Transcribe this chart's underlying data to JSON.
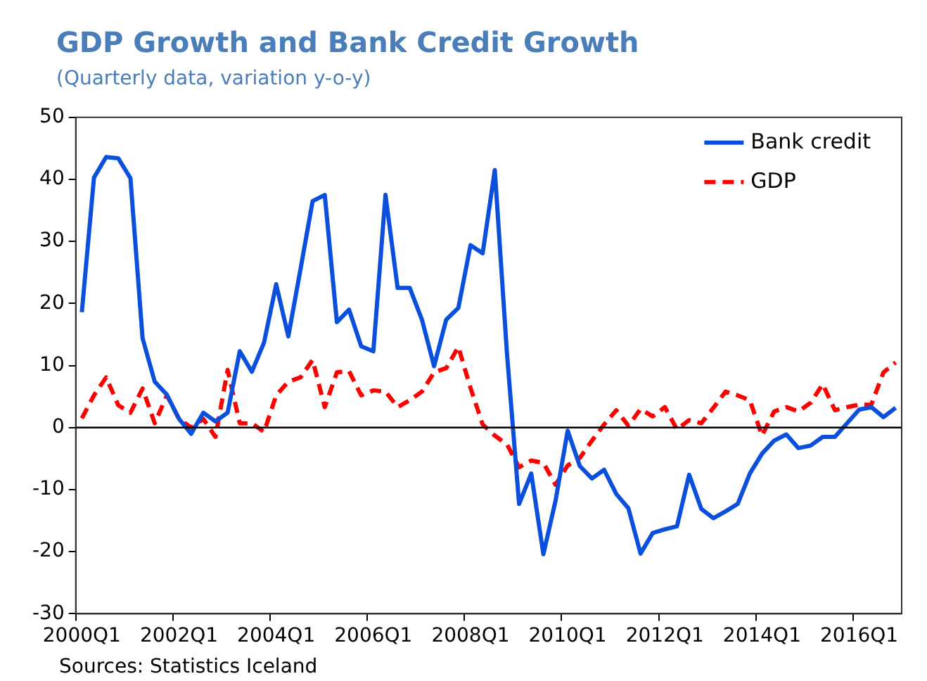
{
  "chart_data": {
    "type": "line",
    "title": "GDP Growth and Bank Credit Growth",
    "subtitle": "(Quarterly data, variation y-o-y)",
    "categories": [
      "2000Q1",
      null,
      null,
      null,
      null,
      null,
      null,
      null,
      "2002Q1",
      null,
      null,
      null,
      null,
      null,
      null,
      null,
      "2004Q1",
      null,
      null,
      null,
      null,
      null,
      null,
      null,
      "2006Q1",
      null,
      null,
      null,
      null,
      null,
      null,
      null,
      "2008Q1",
      null,
      null,
      null,
      null,
      null,
      null,
      null,
      "2010Q1",
      null,
      null,
      null,
      null,
      null,
      null,
      null,
      "2012Q1",
      null,
      null,
      null,
      null,
      null,
      null,
      null,
      "2014Q1",
      null,
      null,
      null,
      null,
      null,
      null,
      null,
      "2016Q1",
      null,
      null,
      null
    ],
    "series": [
      {
        "name": "Bank credit",
        "color": "#0a50dc",
        "line_style": "solid",
        "values": [
          18.6,
          40.3,
          43.6,
          43.4,
          40.2,
          14.4,
          7.4,
          5.3,
          1.4,
          -1.0,
          2.4,
          1.0,
          2.4,
          12.3,
          9.0,
          13.7,
          23.1,
          14.7,
          25.5,
          36.5,
          37.5,
          17.0,
          19.0,
          13.1,
          12.3,
          37.5,
          22.5,
          22.5,
          17.4,
          9.9,
          17.4,
          19.3,
          29.4,
          28.1,
          41.5,
          12,
          -12.3,
          -7.4,
          -20.4,
          -11.8,
          -0.5,
          -6.2,
          -8.2,
          -6.8,
          -10.7,
          -13.0,
          -20.3,
          -17.0,
          -16.4,
          -15.9,
          -7.6,
          -13.1,
          -14.6,
          -13.5,
          -12.3,
          -7.4,
          -4.2,
          -2.1,
          -1.1,
          -3.3,
          -2.9,
          -1.5,
          -1.5,
          0.7,
          2.9,
          3.3,
          1.7,
          3.2
        ]
      },
      {
        "name": "GDP",
        "color": "#ff0000",
        "line_style": "dashed",
        "values": [
          1.5,
          5.2,
          8.1,
          3.6,
          2.4,
          6.3,
          0.7,
          5.2,
          1.4,
          0,
          1.4,
          -1.5,
          9.3,
          0.7,
          0.7,
          -0.7,
          5.2,
          7.4,
          8.1,
          10.9,
          3.3,
          8.9,
          9.1,
          5.2,
          6.0,
          5.8,
          3.3,
          4.4,
          5.8,
          8.9,
          9.6,
          13.0,
          6.4,
          0.5,
          -1.3,
          -2.7,
          -6.4,
          -5.3,
          -5.7,
          -9.2,
          -6.1,
          -4.9,
          -2.1,
          0.5,
          2.8,
          0.3,
          3.0,
          1.8,
          3.3,
          -0.3,
          1.2,
          0.7,
          3.2,
          5.8,
          5.2,
          4.4,
          -1.3,
          2.6,
          3.3,
          2.6,
          4.0,
          7.0,
          2.8,
          3.3,
          3.7,
          3.7,
          8.9,
          10.5
        ]
      }
    ],
    "ref_lines": [
      {
        "axis": "y",
        "value": 0,
        "color": "#000000",
        "line_style": "solid"
      }
    ],
    "ylim": [
      -30,
      50
    ],
    "yticks": [
      -30,
      -20,
      -10,
      0,
      10,
      20,
      30,
      40,
      50
    ],
    "grid": false,
    "legend": "top right",
    "marker": "none",
    "annotations": [
      "Sources: Statistics Iceland"
    ]
  }
}
